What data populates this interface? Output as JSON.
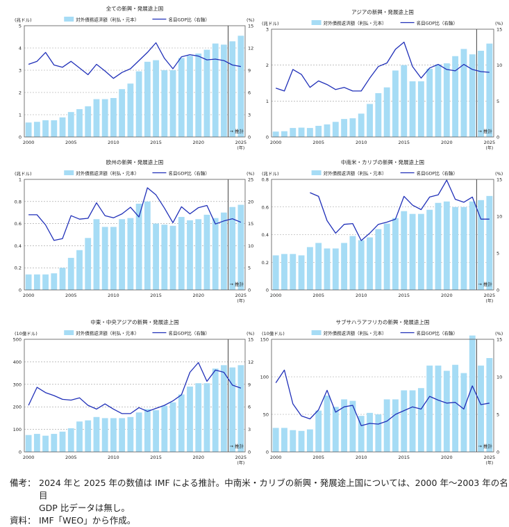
{
  "notes": {
    "label1": "備考：",
    "text1": "2024 年と 2025 年の数値は IMF による推計。中南米・カリブの新興・発展途上国については、2000 年～2003 年の名目",
    "text1b": "GDP 比データは無し。",
    "label2": "資料：",
    "text2": "IMF「WEO」から作成。"
  },
  "colors": {
    "bar": "#a6dcf5",
    "line": "#1f2fb8",
    "grid": "#9a9a9a",
    "vline": "#444444"
  },
  "chart_data": [
    {
      "type": "bar+line",
      "title": "全ての新興・発展途上国",
      "left_unit": "(兆ドル)",
      "right_unit": "(%)",
      "legend_bar": "対外債務返済額（利払・元本）",
      "legend_line": "名目GDP比（右軸）",
      "forecast_label": "→ 推計",
      "year_unit": "(年)",
      "x": [
        2000,
        2001,
        2002,
        2003,
        2004,
        2005,
        2006,
        2007,
        2008,
        2009,
        2010,
        2011,
        2012,
        2013,
        2014,
        2015,
        2016,
        2017,
        2018,
        2019,
        2020,
        2021,
        2022,
        2023,
        2024,
        2025
      ],
      "x_ticks": [
        2000,
        2005,
        2010,
        2015,
        2020,
        2025
      ],
      "left_ylim": [
        0,
        5
      ],
      "left_ticks": [
        0,
        1,
        2,
        3,
        4,
        5
      ],
      "right_ylim": [
        0,
        15
      ],
      "right_ticks": [
        0,
        3,
        6,
        9,
        12,
        15
      ],
      "bars": [
        0.65,
        0.68,
        0.75,
        0.75,
        0.88,
        1.12,
        1.25,
        1.38,
        1.7,
        1.7,
        1.75,
        2.15,
        2.4,
        2.95,
        3.38,
        3.45,
        3.0,
        3.0,
        3.55,
        3.65,
        3.75,
        3.92,
        4.2,
        4.15,
        4.3,
        4.55
      ],
      "line": [
        9.8,
        10.2,
        11.4,
        9.7,
        9.4,
        10.2,
        9.3,
        8.4,
        9.8,
        8.9,
        7.9,
        8.7,
        9.2,
        10.3,
        11.4,
        12.7,
        10.6,
        9.2,
        10.8,
        11.1,
        10.9,
        10.4,
        10.5,
        10.3,
        9.7,
        9.5
      ]
    },
    {
      "type": "bar+line",
      "title": "アジアの新興・発展途上国",
      "left_unit": "(兆ドル)",
      "right_unit": "(%)",
      "legend_bar": "対外債務返済額（利払・元本）",
      "legend_line": "名目GDP比（右軸）",
      "forecast_label": "→ 推計",
      "year_unit": "(年)",
      "x": [
        2000,
        2001,
        2002,
        2003,
        2004,
        2005,
        2006,
        2007,
        2008,
        2009,
        2010,
        2011,
        2012,
        2013,
        2014,
        2015,
        2016,
        2017,
        2018,
        2019,
        2020,
        2021,
        2022,
        2023,
        2024,
        2025
      ],
      "x_ticks": [
        2000,
        2005,
        2010,
        2015,
        2020,
        2025
      ],
      "left_ylim": [
        0,
        3
      ],
      "left_ticks": [
        0,
        1,
        2,
        3
      ],
      "right_ylim": [
        0,
        15
      ],
      "right_ticks": [
        0,
        5,
        10,
        15
      ],
      "bars": [
        0.15,
        0.16,
        0.25,
        0.26,
        0.25,
        0.31,
        0.35,
        0.42,
        0.5,
        0.52,
        0.65,
        0.92,
        1.22,
        1.38,
        1.85,
        2.0,
        1.55,
        1.55,
        1.9,
        2.02,
        2.05,
        2.25,
        2.45,
        2.3,
        2.4,
        2.6
      ],
      "line": [
        6.8,
        6.4,
        9.4,
        8.7,
        6.9,
        7.8,
        7.3,
        6.6,
        6.9,
        6.4,
        6.4,
        8.2,
        9.8,
        10.3,
        12.2,
        13.2,
        9.8,
        8.2,
        9.6,
        10.1,
        9.4,
        9.2,
        10.1,
        9.4,
        9.1,
        9.0
      ]
    },
    {
      "type": "bar+line",
      "title": "欧州の新興・発展途上国",
      "left_unit": "(兆ドル)",
      "right_unit": "(%)",
      "legend_bar": "対外債務返済額（利払・元本）",
      "legend_line": "名目GDP比（右軸）",
      "forecast_label": "→ 推計",
      "year_unit": "(年)",
      "x": [
        2000,
        2001,
        2002,
        2003,
        2004,
        2005,
        2006,
        2007,
        2008,
        2009,
        2010,
        2011,
        2012,
        2013,
        2014,
        2015,
        2016,
        2017,
        2018,
        2019,
        2020,
        2021,
        2022,
        2023,
        2024,
        2025
      ],
      "x_ticks": [
        2000,
        2005,
        2010,
        2015,
        2020,
        2025
      ],
      "left_ylim": [
        0,
        1
      ],
      "left_ticks": [
        0,
        0.2,
        0.4,
        0.6,
        0.8,
        1.0
      ],
      "right_ylim": [
        0,
        25
      ],
      "right_ticks": [
        0,
        5,
        10,
        15,
        20,
        25
      ],
      "bars": [
        0.14,
        0.14,
        0.14,
        0.15,
        0.2,
        0.29,
        0.36,
        0.47,
        0.64,
        0.57,
        0.57,
        0.64,
        0.65,
        0.78,
        0.8,
        0.6,
        0.59,
        0.58,
        0.66,
        0.63,
        0.64,
        0.68,
        0.65,
        0.7,
        0.75,
        0.77
      ],
      "line": [
        17,
        17,
        14.7,
        11.2,
        11.6,
        16.8,
        16,
        16.2,
        19.7,
        16.8,
        16.3,
        17.2,
        18.7,
        16.5,
        23.1,
        21.5,
        18.5,
        15.2,
        18.8,
        17.2,
        18.6,
        19.1,
        14.9,
        15.6,
        16.1,
        15.3
      ]
    },
    {
      "type": "bar+line",
      "title": "中南米・カリブの新興・発展途上国",
      "left_unit": "(兆ドル)",
      "right_unit": "(%)",
      "legend_bar": "対外債務返済額（利払・元本）",
      "legend_line": "名目GDP比（右軸）",
      "forecast_label": "→ 推計",
      "year_unit": "(年)",
      "x": [
        2000,
        2001,
        2002,
        2003,
        2004,
        2005,
        2006,
        2007,
        2008,
        2009,
        2010,
        2011,
        2012,
        2013,
        2014,
        2015,
        2016,
        2017,
        2018,
        2019,
        2020,
        2021,
        2022,
        2023,
        2024,
        2025
      ],
      "x_ticks": [
        2000,
        2005,
        2010,
        2015,
        2020,
        2025
      ],
      "left_ylim": [
        0,
        0.8
      ],
      "left_ticks": [
        0,
        0.2,
        0.4,
        0.6,
        0.8
      ],
      "right_ylim": [
        0,
        15
      ],
      "right_ticks": [
        0,
        5,
        10,
        15
      ],
      "bars": [
        0.25,
        0.26,
        0.26,
        0.25,
        0.31,
        0.34,
        0.3,
        0.3,
        0.34,
        0.39,
        0.36,
        0.38,
        0.44,
        0.48,
        0.52,
        0.57,
        0.55,
        0.55,
        0.58,
        0.63,
        0.64,
        0.6,
        0.6,
        0.64,
        0.65,
        0.68
      ],
      "line": [
        null,
        null,
        null,
        null,
        13.2,
        12.7,
        9.4,
        7.7,
        8.9,
        9.0,
        6.7,
        7.7,
        8.9,
        9.2,
        9.6,
        12.7,
        11.5,
        10.9,
        12.6,
        12.9,
        14.9,
        12.3,
        11.9,
        12.6,
        9.6,
        9.6
      ]
    },
    {
      "type": "bar+line",
      "title": "中東・中央アジアの新興・発展途上国",
      "left_unit": "(10億ドル)",
      "right_unit": "(%)",
      "legend_bar": "対外債務返済額（利払・元本）",
      "legend_line": "名目GDP比（右軸）",
      "forecast_label": "→ 推計",
      "year_unit": "(年)",
      "x": [
        2000,
        2001,
        2002,
        2003,
        2004,
        2005,
        2006,
        2007,
        2008,
        2009,
        2010,
        2011,
        2012,
        2013,
        2014,
        2015,
        2016,
        2017,
        2018,
        2019,
        2020,
        2021,
        2022,
        2023,
        2024,
        2025
      ],
      "x_ticks": [
        2000,
        2005,
        2010,
        2015,
        2020,
        2025
      ],
      "left_ylim": [
        0,
        500
      ],
      "left_ticks": [
        0,
        100,
        200,
        300,
        400,
        500
      ],
      "right_ylim": [
        0,
        15
      ],
      "right_ticks": [
        0,
        3,
        6,
        9,
        12,
        15
      ],
      "bars": [
        75,
        80,
        72,
        80,
        90,
        105,
        135,
        140,
        155,
        150,
        150,
        150,
        155,
        175,
        190,
        185,
        205,
        220,
        255,
        290,
        305,
        305,
        370,
        385,
        375,
        385
      ],
      "line": [
        6.2,
        8.6,
        7.9,
        7.5,
        7.0,
        6.9,
        7.2,
        6.2,
        5.7,
        6.4,
        5.7,
        5.1,
        5.1,
        5.9,
        5.4,
        5.8,
        6.2,
        6.8,
        7.6,
        10.6,
        11.9,
        9.4,
        10.9,
        10.6,
        8.9,
        8.5
      ]
    },
    {
      "type": "bar+line",
      "title": "サブサハラアフリカの新興・発展途上国",
      "left_unit": "(10億ドル)",
      "right_unit": "(%)",
      "legend_bar": "対外債務返済額（利払・元本）",
      "legend_line": "名目GDP比（右軸）",
      "forecast_label": "→ 推計",
      "year_unit": "(年)",
      "x": [
        2000,
        2001,
        2002,
        2003,
        2004,
        2005,
        2006,
        2007,
        2008,
        2009,
        2010,
        2011,
        2012,
        2013,
        2014,
        2015,
        2016,
        2017,
        2018,
        2019,
        2020,
        2021,
        2022,
        2023,
        2024,
        2025
      ],
      "x_ticks": [
        2000,
        2005,
        2010,
        2015,
        2020,
        2025
      ],
      "left_ylim": [
        0,
        150
      ],
      "left_ticks": [
        0,
        50,
        100,
        150
      ],
      "right_ylim": [
        0,
        15
      ],
      "right_ticks": [
        0,
        5,
        10,
        15
      ],
      "bars": [
        32,
        32,
        29,
        28,
        30,
        55,
        75,
        60,
        70,
        68,
        48,
        52,
        50,
        70,
        70,
        82,
        82,
        85,
        115,
        115,
        108,
        116,
        105,
        155,
        115,
        125
      ],
      "line": [
        9.2,
        10.9,
        6.4,
        4.8,
        4.4,
        5.6,
        8.2,
        5.3,
        6.0,
        6.2,
        3.5,
        3.8,
        3.7,
        4.1,
        5.0,
        5.5,
        6.0,
        5.7,
        7.4,
        6.9,
        6.5,
        6.6,
        5.7,
        8.8,
        6.3,
        6.5
      ]
    }
  ]
}
